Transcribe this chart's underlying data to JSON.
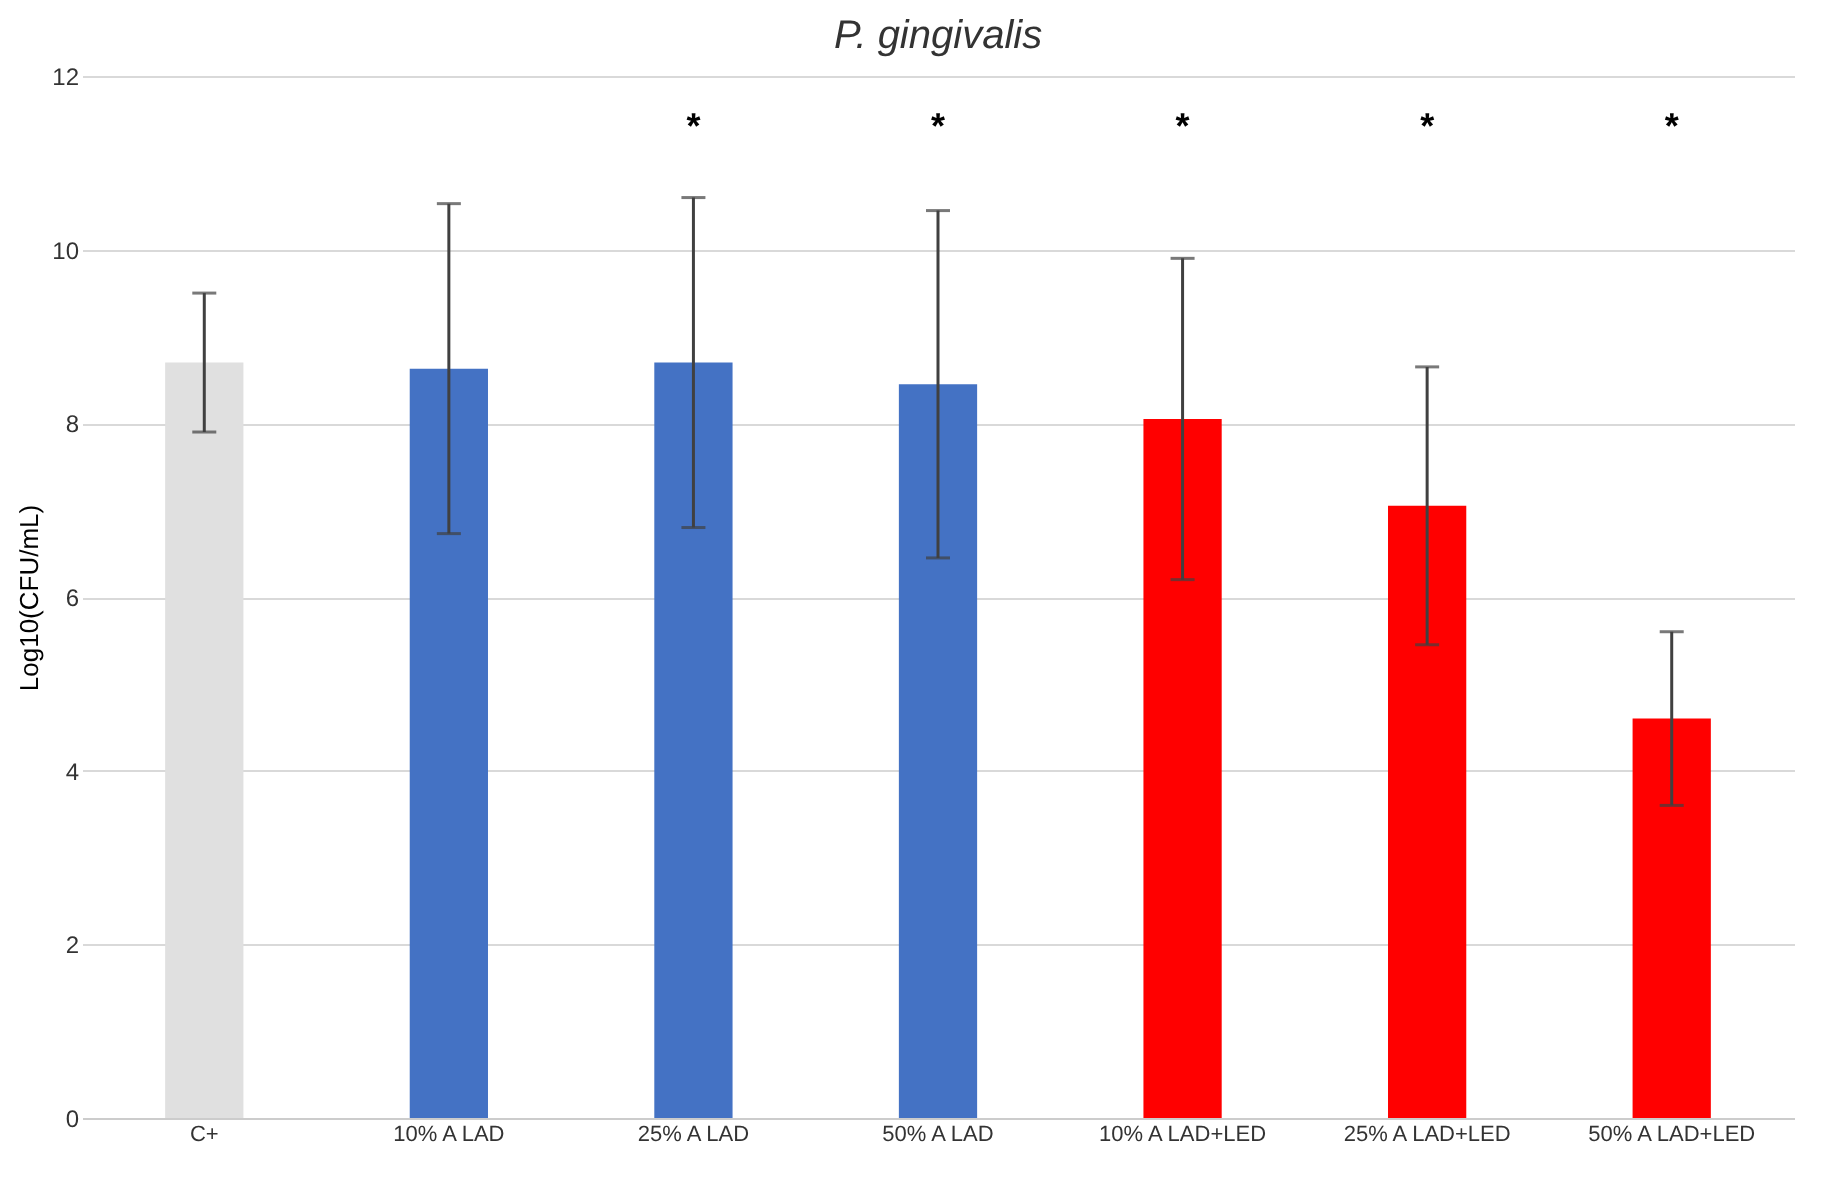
{
  "chart_data": {
    "type": "bar",
    "title": "P. gingivalis",
    "ylabel": "Log10(CFU/mL)",
    "categories": [
      "C+",
      "10% A LAD",
      "25% A LAD",
      "50% A LAD",
      "10% A LAD+LED",
      "25% A LAD+LED",
      "50% A LAD+LED"
    ],
    "values": [
      8.7,
      8.63,
      8.7,
      8.45,
      8.05,
      7.05,
      4.6
    ],
    "errors": [
      0.8,
      1.9,
      1.9,
      2.0,
      1.85,
      1.6,
      1.0
    ],
    "colors": [
      "#e0e0e0",
      "#4472c4",
      "#4472c4",
      "#4472c4",
      "#ff0000",
      "#ff0000",
      "#ff0000"
    ],
    "ylim": [
      0,
      12
    ],
    "yticks": [
      0,
      2,
      4,
      6,
      8,
      10,
      12
    ],
    "grid": "y",
    "annotations": [
      "*",
      "*",
      "*",
      "*",
      "*"
    ]
  }
}
